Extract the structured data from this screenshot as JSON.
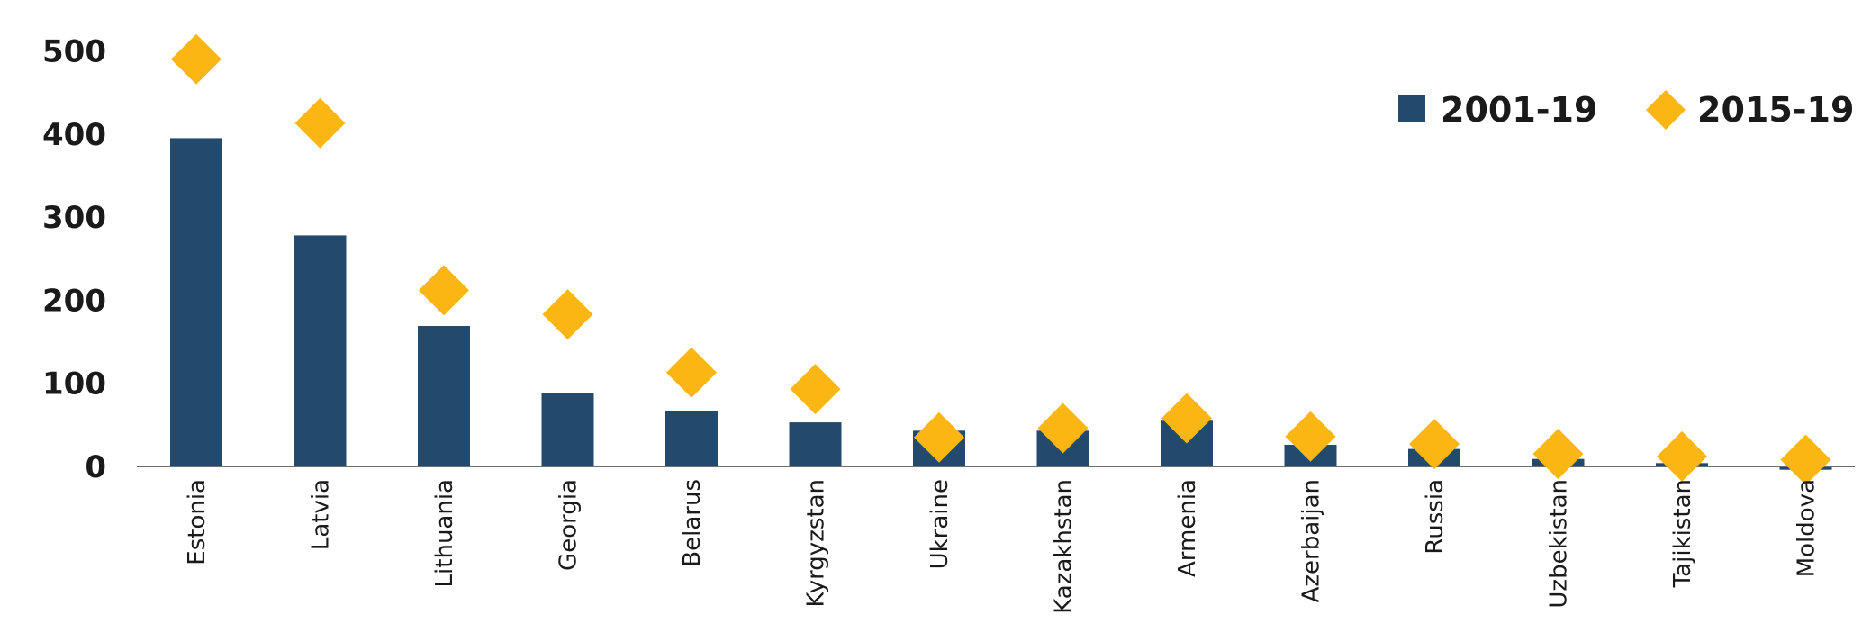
{
  "chart_data": {
    "type": "bar",
    "categories": [
      "Estonia",
      "Latvia",
      "Lithuania",
      "Georgia",
      "Belarus",
      "Kyrgyzstan",
      "Ukraine",
      "Kazakhstan",
      "Armenia",
      "Azerbaijan",
      "Russia",
      "Uzbekistan",
      "Tajikistan",
      "Moldova"
    ],
    "highlight_category": "Georgia",
    "highlight_color": "#e8262d",
    "series": [
      {
        "name": "2001-19",
        "type": "bar",
        "color": "#234a6c",
        "values": [
          395,
          278,
          169,
          88,
          67,
          53,
          43,
          43,
          55,
          26,
          21,
          9,
          4,
          -4
        ]
      },
      {
        "name": "2015-19",
        "type": "marker-diamond",
        "color": "#fbb613",
        "values": [
          490,
          413,
          212,
          183,
          113,
          93,
          35,
          46,
          58,
          36,
          27,
          15,
          12,
          8
        ]
      }
    ],
    "yticks": [
      "0",
      "100",
      "200",
      "300",
      "400",
      "500"
    ],
    "ylim": [
      -10,
      520
    ],
    "title": "",
    "xlabel": "",
    "ylabel": "",
    "legend": "top-right",
    "grid": false
  }
}
